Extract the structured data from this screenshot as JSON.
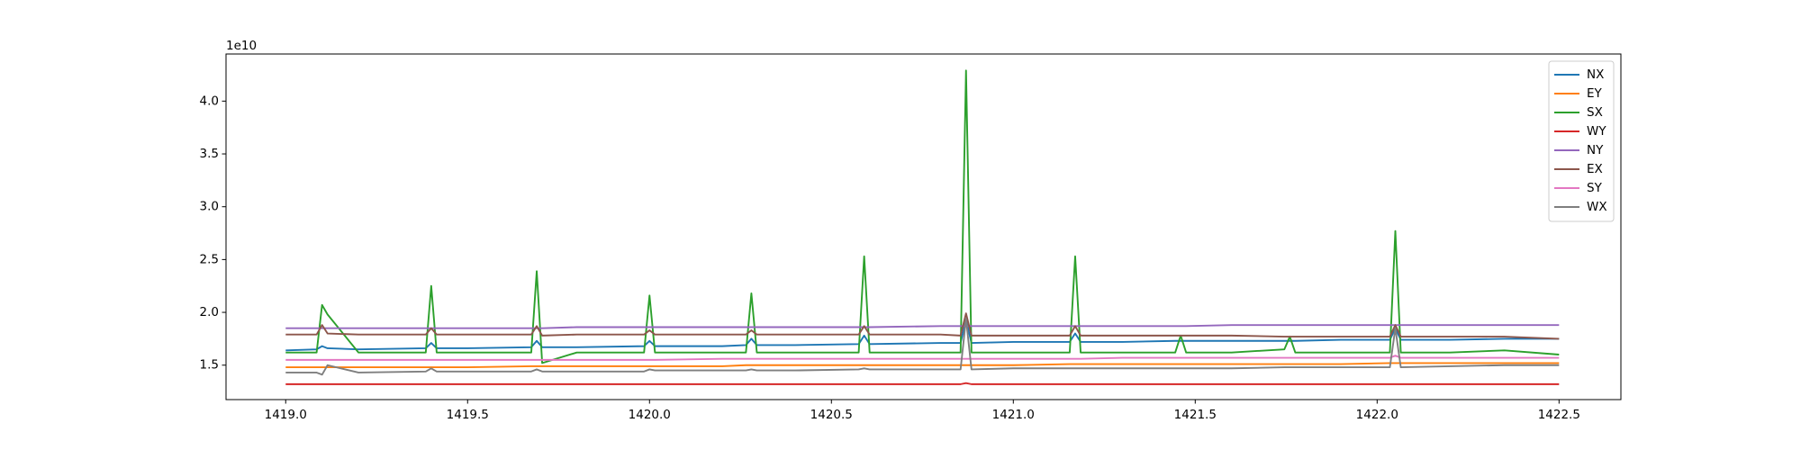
{
  "chart_data": {
    "type": "line",
    "offset_text": "1e10",
    "x": [
      1419.0,
      1419.085,
      1419.1,
      1419.115,
      1419.2,
      1419.385,
      1419.4,
      1419.415,
      1419.5,
      1419.675,
      1419.69,
      1419.705,
      1419.8,
      1419.985,
      1420.0,
      1420.015,
      1420.2,
      1420.265,
      1420.28,
      1420.295,
      1420.4,
      1420.575,
      1420.59,
      1420.605,
      1420.8,
      1420.855,
      1420.87,
      1420.885,
      1421.0,
      1421.155,
      1421.17,
      1421.185,
      1421.3,
      1421.445,
      1421.46,
      1421.475,
      1421.6,
      1421.745,
      1421.76,
      1421.775,
      1421.9,
      1422.035,
      1422.05,
      1422.065,
      1422.2,
      1422.35,
      1422.5
    ],
    "series": [
      {
        "name": "NX",
        "color": "#1f77b4",
        "values": [
          1.64,
          1.65,
          1.68,
          1.66,
          1.65,
          1.66,
          1.71,
          1.66,
          1.66,
          1.67,
          1.73,
          1.67,
          1.67,
          1.68,
          1.73,
          1.68,
          1.68,
          1.69,
          1.75,
          1.69,
          1.69,
          1.7,
          1.78,
          1.7,
          1.71,
          1.71,
          1.93,
          1.71,
          1.72,
          1.72,
          1.8,
          1.72,
          1.72,
          1.73,
          1.73,
          1.73,
          1.73,
          1.73,
          1.73,
          1.73,
          1.74,
          1.74,
          1.85,
          1.74,
          1.74,
          1.75,
          1.75
        ]
      },
      {
        "name": "EY",
        "color": "#ff7f0e",
        "values": [
          1.48,
          1.48,
          1.48,
          1.48,
          1.48,
          1.48,
          1.48,
          1.48,
          1.48,
          1.49,
          1.49,
          1.49,
          1.49,
          1.49,
          1.49,
          1.49,
          1.49,
          1.5,
          1.5,
          1.5,
          1.5,
          1.5,
          1.5,
          1.5,
          1.5,
          1.5,
          1.5,
          1.5,
          1.5,
          1.51,
          1.51,
          1.51,
          1.51,
          1.51,
          1.51,
          1.51,
          1.51,
          1.51,
          1.51,
          1.51,
          1.51,
          1.52,
          1.52,
          1.52,
          1.52,
          1.52,
          1.52
        ]
      },
      {
        "name": "SX",
        "color": "#2ca02c",
        "values": [
          1.62,
          1.62,
          2.07,
          1.98,
          1.62,
          1.62,
          2.25,
          1.62,
          1.62,
          1.62,
          2.39,
          1.52,
          1.62,
          1.62,
          2.16,
          1.62,
          1.62,
          1.62,
          2.18,
          1.62,
          1.62,
          1.62,
          2.53,
          1.62,
          1.62,
          1.62,
          4.29,
          1.62,
          1.62,
          1.62,
          2.53,
          1.62,
          1.62,
          1.62,
          1.78,
          1.62,
          1.62,
          1.65,
          1.77,
          1.62,
          1.62,
          1.62,
          2.77,
          1.62,
          1.62,
          1.64,
          1.6
        ]
      },
      {
        "name": "WY",
        "color": "#d62728",
        "values": [
          1.32,
          1.32,
          1.32,
          1.32,
          1.32,
          1.32,
          1.32,
          1.32,
          1.32,
          1.32,
          1.32,
          1.32,
          1.32,
          1.32,
          1.32,
          1.32,
          1.32,
          1.32,
          1.32,
          1.32,
          1.32,
          1.32,
          1.32,
          1.32,
          1.32,
          1.32,
          1.33,
          1.32,
          1.32,
          1.32,
          1.32,
          1.32,
          1.32,
          1.32,
          1.32,
          1.32,
          1.32,
          1.32,
          1.32,
          1.32,
          1.32,
          1.32,
          1.32,
          1.32,
          1.32,
          1.32,
          1.32
        ]
      },
      {
        "name": "NY",
        "color": "#9467bd",
        "values": [
          1.85,
          1.85,
          1.85,
          1.85,
          1.85,
          1.85,
          1.85,
          1.85,
          1.85,
          1.85,
          1.85,
          1.85,
          1.86,
          1.86,
          1.86,
          1.86,
          1.86,
          1.86,
          1.86,
          1.86,
          1.86,
          1.86,
          1.86,
          1.86,
          1.87,
          1.87,
          1.87,
          1.87,
          1.87,
          1.87,
          1.87,
          1.87,
          1.87,
          1.87,
          1.87,
          1.87,
          1.88,
          1.88,
          1.88,
          1.88,
          1.88,
          1.88,
          1.88,
          1.88,
          1.88,
          1.88,
          1.88
        ]
      },
      {
        "name": "EX",
        "color": "#8c564b",
        "values": [
          1.79,
          1.79,
          1.88,
          1.8,
          1.79,
          1.79,
          1.85,
          1.79,
          1.79,
          1.79,
          1.87,
          1.78,
          1.79,
          1.79,
          1.83,
          1.79,
          1.79,
          1.79,
          1.83,
          1.79,
          1.79,
          1.79,
          1.87,
          1.79,
          1.79,
          1.78,
          1.99,
          1.78,
          1.78,
          1.78,
          1.87,
          1.78,
          1.78,
          1.78,
          1.78,
          1.78,
          1.78,
          1.77,
          1.77,
          1.77,
          1.77,
          1.77,
          1.88,
          1.77,
          1.77,
          1.77,
          1.75
        ]
      },
      {
        "name": "SY",
        "color": "#e377c2",
        "values": [
          1.55,
          1.55,
          1.55,
          1.55,
          1.55,
          1.55,
          1.55,
          1.55,
          1.55,
          1.55,
          1.55,
          1.55,
          1.55,
          1.55,
          1.55,
          1.55,
          1.56,
          1.56,
          1.56,
          1.56,
          1.56,
          1.56,
          1.56,
          1.56,
          1.56,
          1.56,
          1.56,
          1.56,
          1.56,
          1.56,
          1.56,
          1.56,
          1.57,
          1.57,
          1.57,
          1.57,
          1.57,
          1.57,
          1.57,
          1.57,
          1.57,
          1.57,
          1.59,
          1.57,
          1.57,
          1.57,
          1.57
        ]
      },
      {
        "name": "WX",
        "color": "#7f7f7f",
        "values": [
          1.43,
          1.43,
          1.41,
          1.5,
          1.43,
          1.44,
          1.47,
          1.44,
          1.44,
          1.44,
          1.46,
          1.44,
          1.44,
          1.44,
          1.46,
          1.45,
          1.45,
          1.45,
          1.46,
          1.45,
          1.45,
          1.46,
          1.47,
          1.46,
          1.46,
          1.46,
          1.94,
          1.46,
          1.47,
          1.47,
          1.47,
          1.47,
          1.47,
          1.47,
          1.47,
          1.47,
          1.47,
          1.48,
          1.48,
          1.48,
          1.48,
          1.48,
          1.85,
          1.48,
          1.49,
          1.5,
          1.5
        ]
      }
    ],
    "xlim": [
      1418.836,
      1422.67
    ],
    "ylim": [
      1.174,
      4.446
    ],
    "xticks": [
      {
        "value": 1419.0,
        "label": "1419.0"
      },
      1419.5,
      {
        "value": 1420.0,
        "label": "1420.0"
      },
      1420.5,
      {
        "value": 1421.0,
        "label": "1421.0"
      },
      1421.5,
      {
        "value": 1422.0,
        "label": "1422.0"
      },
      1422.5
    ],
    "yticks": [
      1.5,
      {
        "value": 2.0,
        "label": "2.0"
      },
      2.5,
      {
        "value": 3.0,
        "label": "3.0"
      },
      3.5,
      {
        "value": 4.0,
        "label": "4.0"
      }
    ],
    "grid": false,
    "legend": "upper right"
  }
}
